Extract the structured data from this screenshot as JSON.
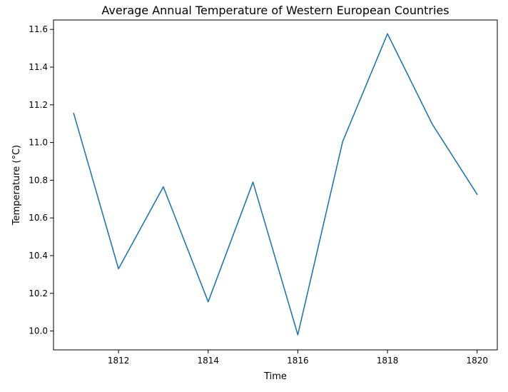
{
  "chart_data": {
    "type": "line",
    "title": "Average Annual Temperature of Western European Countries",
    "xlabel": "Time",
    "ylabel": "Temperature (°C)",
    "x": [
      1811,
      1812,
      1813,
      1814,
      1815,
      1816,
      1817,
      1818,
      1819,
      1820
    ],
    "series": [
      {
        "values": [
          11.155,
          10.33,
          10.765,
          10.155,
          10.79,
          9.98,
          11.005,
          11.577,
          11.097,
          10.725
        ],
        "color": "#1f77b4"
      }
    ],
    "xlim": [
      1810.55,
      1820.45
    ],
    "ylim": [
      9.9,
      11.65
    ],
    "xticks": [
      1812,
      1814,
      1816,
      1818,
      1820
    ],
    "yticks": [
      10.0,
      10.2,
      10.4,
      10.6,
      10.8,
      11.0,
      11.2,
      11.4,
      11.6
    ],
    "xtick_labels": [
      "1812",
      "1814",
      "1816",
      "1818",
      "1820"
    ],
    "ytick_labels": [
      "10.0",
      "10.2",
      "10.4",
      "10.6",
      "10.8",
      "11.0",
      "11.2",
      "11.4",
      "11.6"
    ],
    "grid": false,
    "legend": "none"
  }
}
